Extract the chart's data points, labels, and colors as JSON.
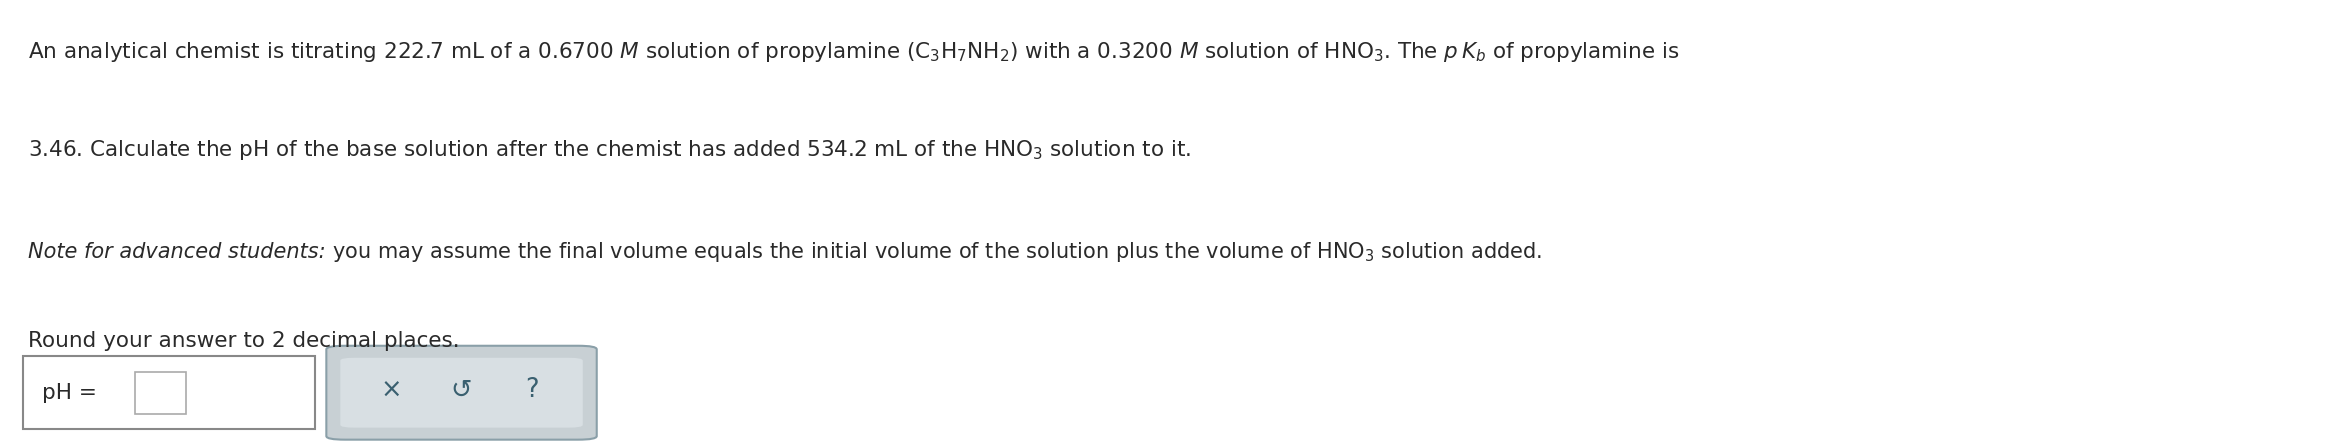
{
  "bg_color": "#ffffff",
  "text_color": "#2a2a2a",
  "font_size_main": 15.5,
  "font_size_note": 15.0,
  "line1": "An analytical chemist is titrating 222.7 mL of a 0.6700 $\\mathit{M}$ solution of propylamine $\\left(\\mathrm{C_3H_7NH_2}\\right)$ with a 0.3200 $\\mathit{M}$ solution of $\\mathrm{HNO_3}$. The $p\\,K_b$ of propylamine is",
  "line2": "3.46. Calculate the pH of the base solution after the chemist has added 534.2 mL of the $\\mathrm{HNO_3}$ solution to it.",
  "line3_italic": "Note for advanced students:",
  "line3_normal": " you may assume the final volume equals the initial volume of the solution plus the volume of $\\mathrm{HNO_3}$ solution added.",
  "line4": "Round your answer to 2 decimal places.",
  "ph_label": "pH = ",
  "input_box_color": "#ffffff",
  "input_box_border": "#888888",
  "button_outer_color": "#c8d0d4",
  "button_outer_border": "#8a9fa8",
  "button_inner_color": "#d8dfe3",
  "button_text_color": "#3a6070"
}
